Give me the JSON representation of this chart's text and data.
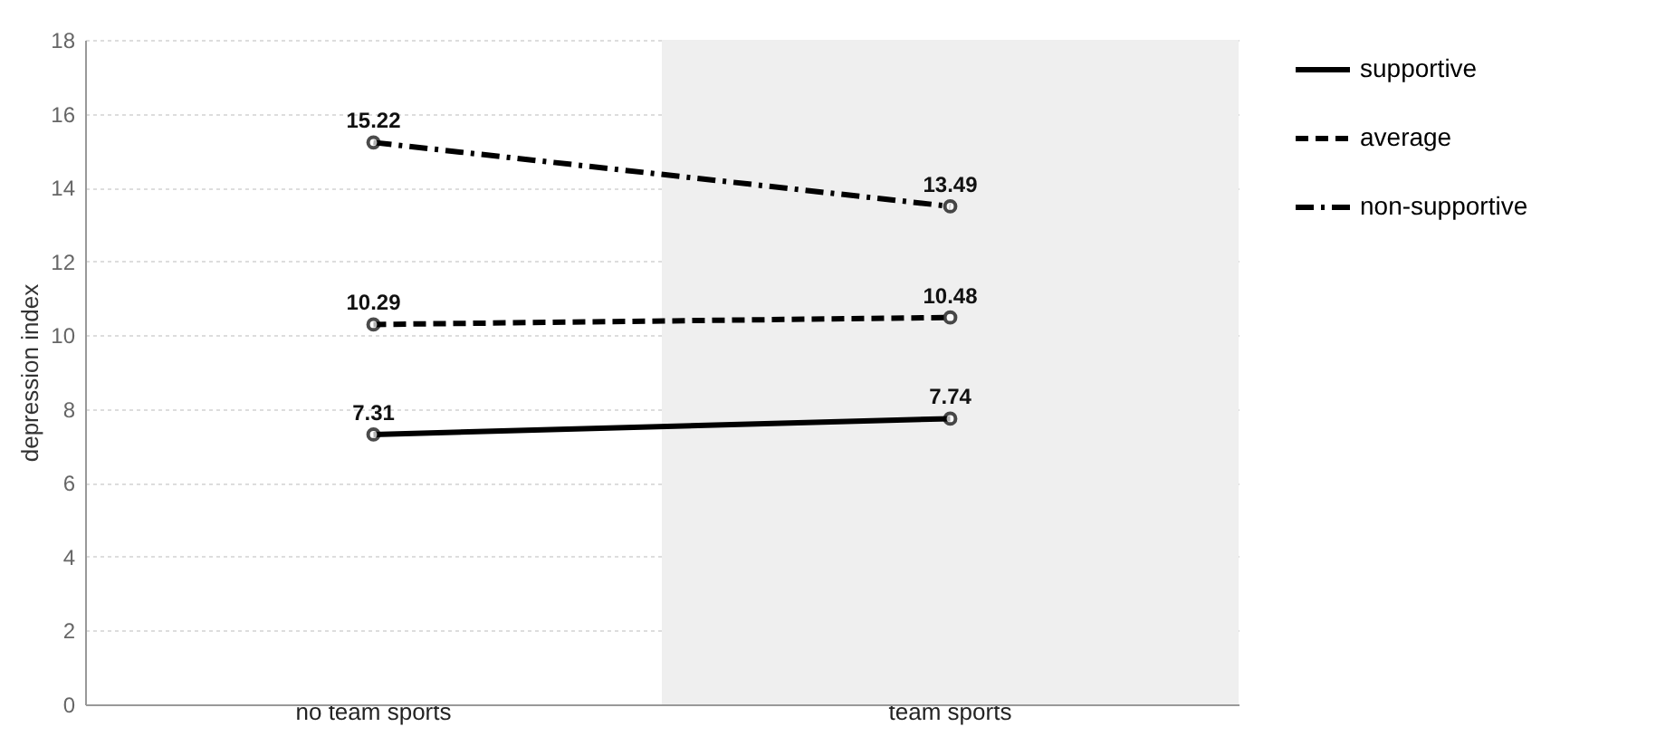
{
  "chart_data": {
    "type": "line",
    "ylabel": "depression index",
    "categories": [
      "no team sports",
      "team sports"
    ],
    "series": [
      {
        "name": "supportive",
        "color": "#000000",
        "line_style": "solid",
        "values": [
          7.31,
          7.74
        ]
      },
      {
        "name": "average",
        "color": "#000000",
        "line_style": "dashed",
        "values": [
          10.29,
          10.48
        ]
      },
      {
        "name": "non-supportive",
        "color": "#000000",
        "line_style": "dashdot",
        "values": [
          15.22,
          13.49
        ]
      }
    ],
    "ylim": [
      0,
      18
    ],
    "yticks": [
      0,
      2,
      4,
      6,
      8,
      10,
      12,
      14,
      16,
      18
    ],
    "grid": "y",
    "legend": "top right",
    "marker": "circle",
    "data_labels": true,
    "bands": [
      {
        "axis": "x",
        "from": "team sports",
        "to": "team sports",
        "color": "#efefef"
      }
    ]
  }
}
